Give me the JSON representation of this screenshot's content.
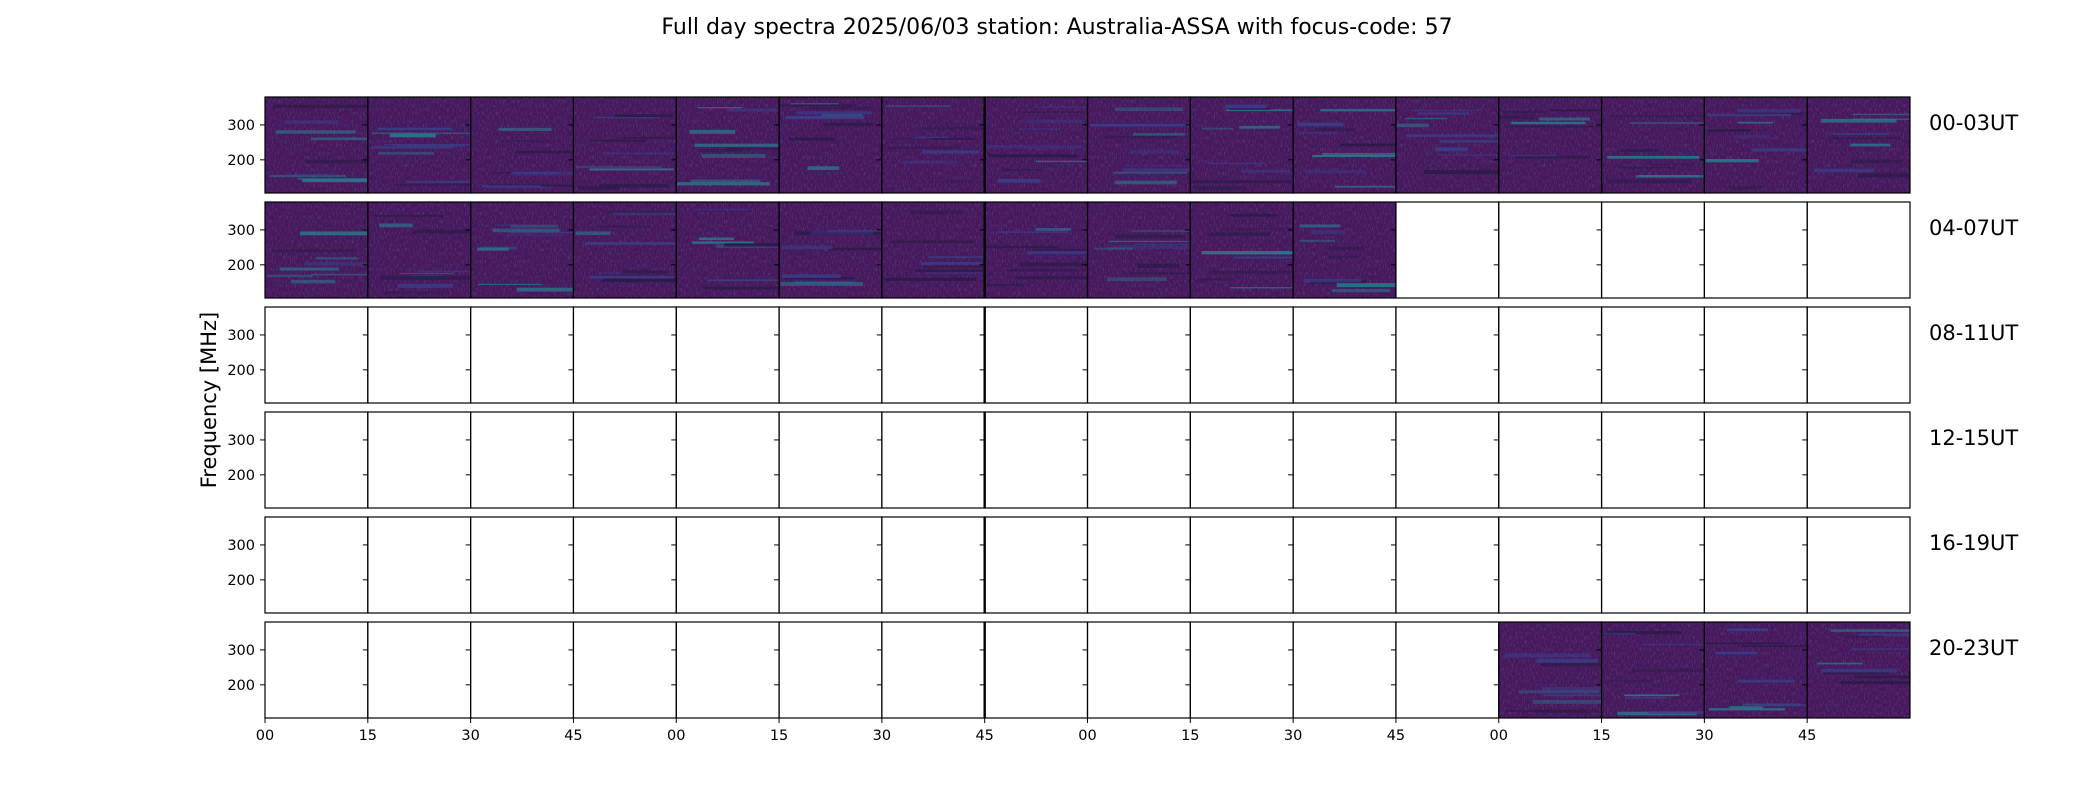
{
  "chart_data": {
    "type": "heatmap",
    "title": "Full day spectra 2025/06/03 station: Australia-ASSA with focus-code: 57",
    "ylabel": "Frequency [MHz]",
    "xlabel": "",
    "y_ticks": [
      "300",
      "200"
    ],
    "y_tick_values": [
      300,
      200
    ],
    "ylim": [
      105,
      380
    ],
    "x_ticks": [
      "00",
      "15",
      "30",
      "45",
      "00",
      "15",
      "30",
      "45",
      "00",
      "15",
      "30",
      "45",
      "00",
      "15",
      "30",
      "45"
    ],
    "grid": false,
    "colormap": "viridis",
    "background_color": "#46175c",
    "rows": [
      {
        "label": "00-03UT",
        "data_panels": [
          1,
          1,
          1,
          1,
          1,
          1,
          1,
          1,
          1,
          1,
          1,
          1,
          1,
          1,
          1,
          1
        ]
      },
      {
        "label": "04-07UT",
        "data_panels": [
          1,
          1,
          1,
          1,
          1,
          1,
          1,
          1,
          1,
          1,
          1,
          0,
          0,
          0,
          0,
          0
        ]
      },
      {
        "label": "08-11UT",
        "data_panels": [
          0,
          0,
          0,
          0,
          0,
          0,
          0,
          0,
          0,
          0,
          0,
          0,
          0,
          0,
          0,
          0
        ]
      },
      {
        "label": "12-15UT",
        "data_panels": [
          0,
          0,
          0,
          0,
          0,
          0,
          0,
          0,
          0,
          0,
          0,
          0,
          0,
          0,
          0,
          0
        ]
      },
      {
        "label": "16-19UT",
        "data_panels": [
          0,
          0,
          0,
          0,
          0,
          0,
          0,
          0,
          0,
          0,
          0,
          0,
          0,
          0,
          0,
          0
        ]
      },
      {
        "label": "20-23UT",
        "data_panels": [
          0,
          0,
          0,
          0,
          0,
          0,
          0,
          0,
          0,
          0,
          0,
          0,
          1,
          1,
          1,
          1
        ]
      }
    ]
  }
}
